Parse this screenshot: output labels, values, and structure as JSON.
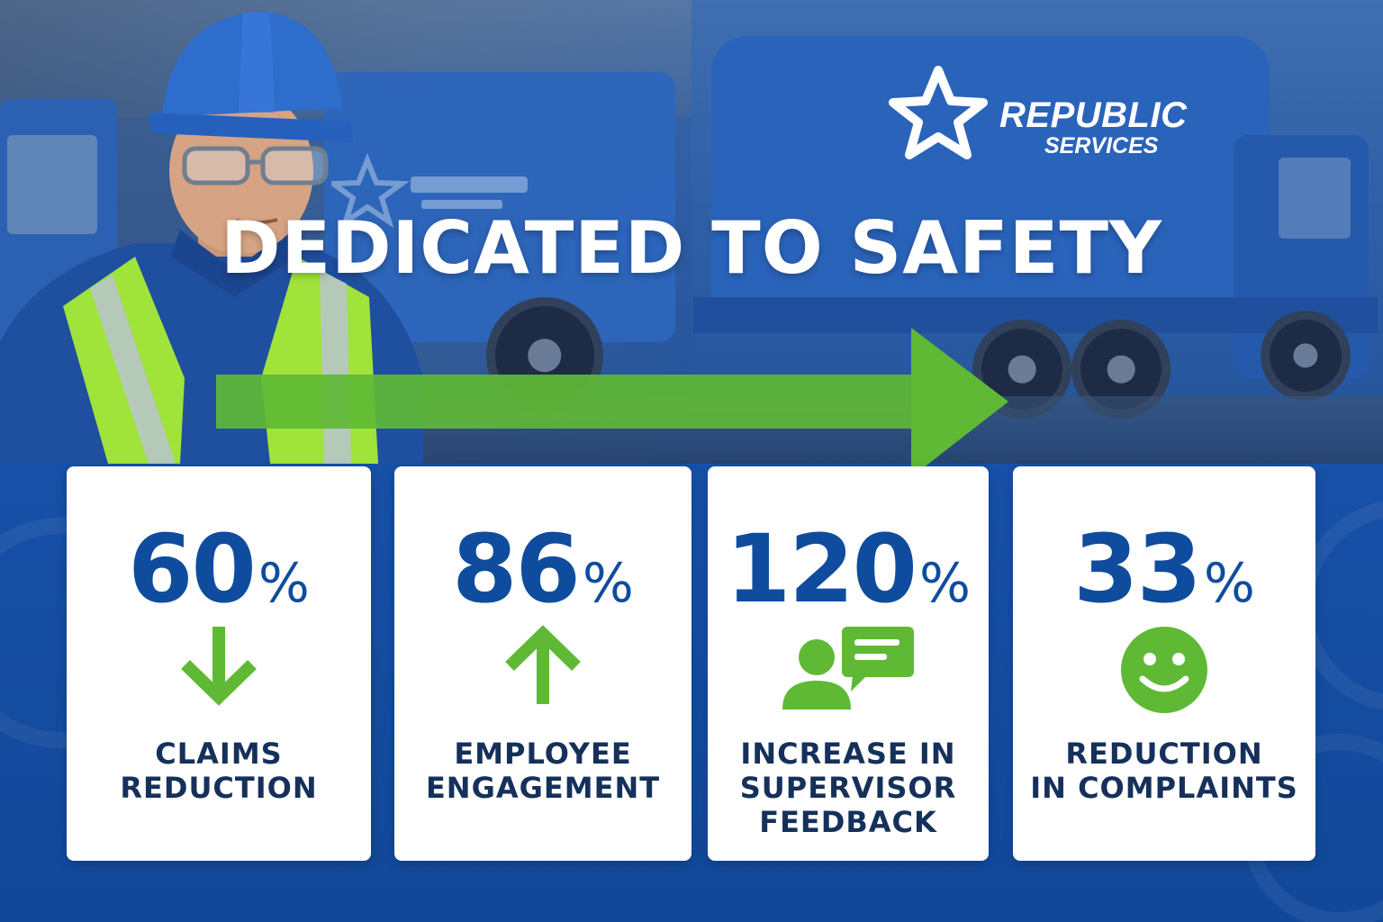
{
  "colors": {
    "brand_blue": "#114a9e",
    "stat_blue": "#0f4c9d",
    "accent_green": "#5fb935",
    "label_navy": "#15305a",
    "card_white": "#ffffff"
  },
  "logo": {
    "icon": "star-icon",
    "word1": "REPUBLIC",
    "word2": "SERVICES"
  },
  "headline": "DEDICATED TO SAFETY",
  "stats": [
    {
      "value": "60",
      "unit": "%",
      "icon": "arrow-down-icon",
      "label_lines": [
        "CLAIMS",
        "REDUCTION"
      ]
    },
    {
      "value": "86",
      "unit": "%",
      "icon": "arrow-up-icon",
      "label_lines": [
        "EMPLOYEE",
        "ENGAGEMENT"
      ]
    },
    {
      "value": "120",
      "unit": "%",
      "icon": "person-feedback-icon",
      "label_lines": [
        "INCREASE IN",
        "SUPERVISOR",
        "FEEDBACK"
      ]
    },
    {
      "value": "33",
      "unit": "%",
      "icon": "smiley-icon",
      "label_lines": [
        "REDUCTION",
        "IN COMPLAINTS"
      ]
    }
  ]
}
